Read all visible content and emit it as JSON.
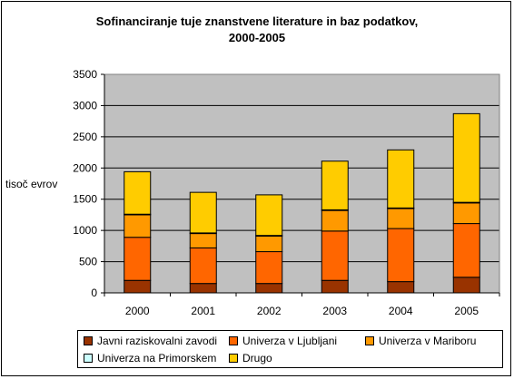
{
  "chart_data": {
    "type": "bar",
    "stacked": true,
    "title": "Sofinanciranje tuje znanstvene literature in baz podatkov,\n2000-2005",
    "ylabel": "tisoč evrov",
    "xlabel": "",
    "categories": [
      "2000",
      "2001",
      "2002",
      "2003",
      "2004",
      "2005"
    ],
    "ylim": [
      0,
      3500
    ],
    "yticks": [
      0,
      500,
      1000,
      1500,
      2000,
      2500,
      3000,
      3500
    ],
    "grid": true,
    "plot_background": "#C0C0C0",
    "legend_position": "bottom",
    "series": [
      {
        "name": "Javni raziskovalni zavodi",
        "color": "#993300",
        "values": [
          200,
          150,
          150,
          200,
          180,
          250
        ]
      },
      {
        "name": "Univerza v Ljubljani",
        "color": "#FF6600",
        "values": [
          690,
          570,
          510,
          790,
          850,
          860
        ]
      },
      {
        "name": "Univerza v Mariboru",
        "color": "#FF9900",
        "values": [
          360,
          230,
          250,
          330,
          320,
          330
        ]
      },
      {
        "name": "Univerza na Primorskem",
        "color": "#CCFFFF",
        "values": [
          10,
          10,
          10,
          10,
          10,
          10
        ]
      },
      {
        "name": "Drugo",
        "color": "#FFCC00",
        "values": [
          680,
          650,
          650,
          780,
          930,
          1420
        ]
      }
    ]
  }
}
